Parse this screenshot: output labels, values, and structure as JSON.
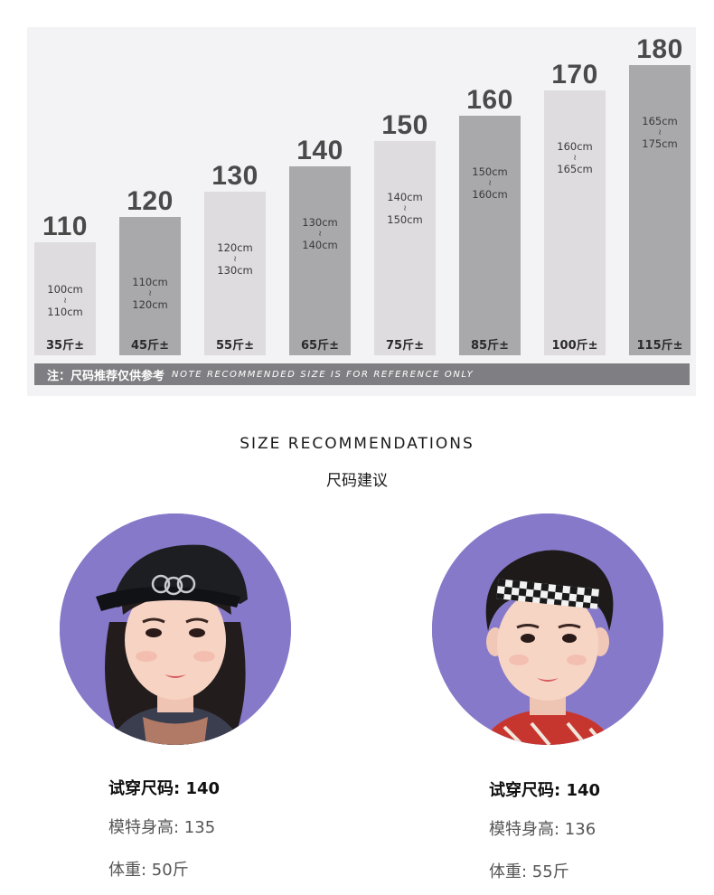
{
  "size_chart": {
    "bars": [
      {
        "size": "110",
        "range_from": "100cm",
        "range_to": "110cm",
        "weight": "35斤±",
        "shade": "light"
      },
      {
        "size": "120",
        "range_from": "110cm",
        "range_to": "120cm",
        "weight": "45斤±",
        "shade": "dark"
      },
      {
        "size": "130",
        "range_from": "120cm",
        "range_to": "130cm",
        "weight": "55斤±",
        "shade": "light"
      },
      {
        "size": "140",
        "range_from": "130cm",
        "range_to": "140cm",
        "weight": "65斤±",
        "shade": "dark"
      },
      {
        "size": "150",
        "range_from": "140cm",
        "range_to": "150cm",
        "weight": "75斤±",
        "shade": "light"
      },
      {
        "size": "160",
        "range_from": "150cm",
        "range_to": "160cm",
        "weight": "85斤±",
        "shade": "dark"
      },
      {
        "size": "170",
        "range_from": "160cm",
        "range_to": "165cm",
        "weight": "100斤±",
        "shade": "light"
      },
      {
        "size": "180",
        "range_from": "165cm",
        "range_to": "175cm",
        "weight": "115斤±",
        "shade": "dark"
      }
    ],
    "range_separator": "≀",
    "note_cn": "注：尺码推荐仅供参考",
    "note_en": "NOTE RECOMMENDED SIZE IS FOR REFERENCE ONLY"
  },
  "heading": {
    "title_en": "SIZE RECOMMENDATIONS",
    "title_cn": "尺码建议"
  },
  "models": [
    {
      "photo_icon": "girl-model-photo",
      "size_line": "试穿尺码: 140",
      "height_line": "模特身高: 135",
      "weight_line": "体重: 50斤"
    },
    {
      "photo_icon": "boy-model-photo",
      "size_line": "试穿尺码: 140",
      "height_line": "模特身高: 136",
      "weight_line": "体重: 55斤"
    }
  ],
  "colors": {
    "panel_bg": "#f3f2f4",
    "bar_light": "#dedcdf",
    "bar_dark": "#a9a8ab",
    "note_strip": "#7f7e82",
    "photo_bg": "#8779c9"
  }
}
